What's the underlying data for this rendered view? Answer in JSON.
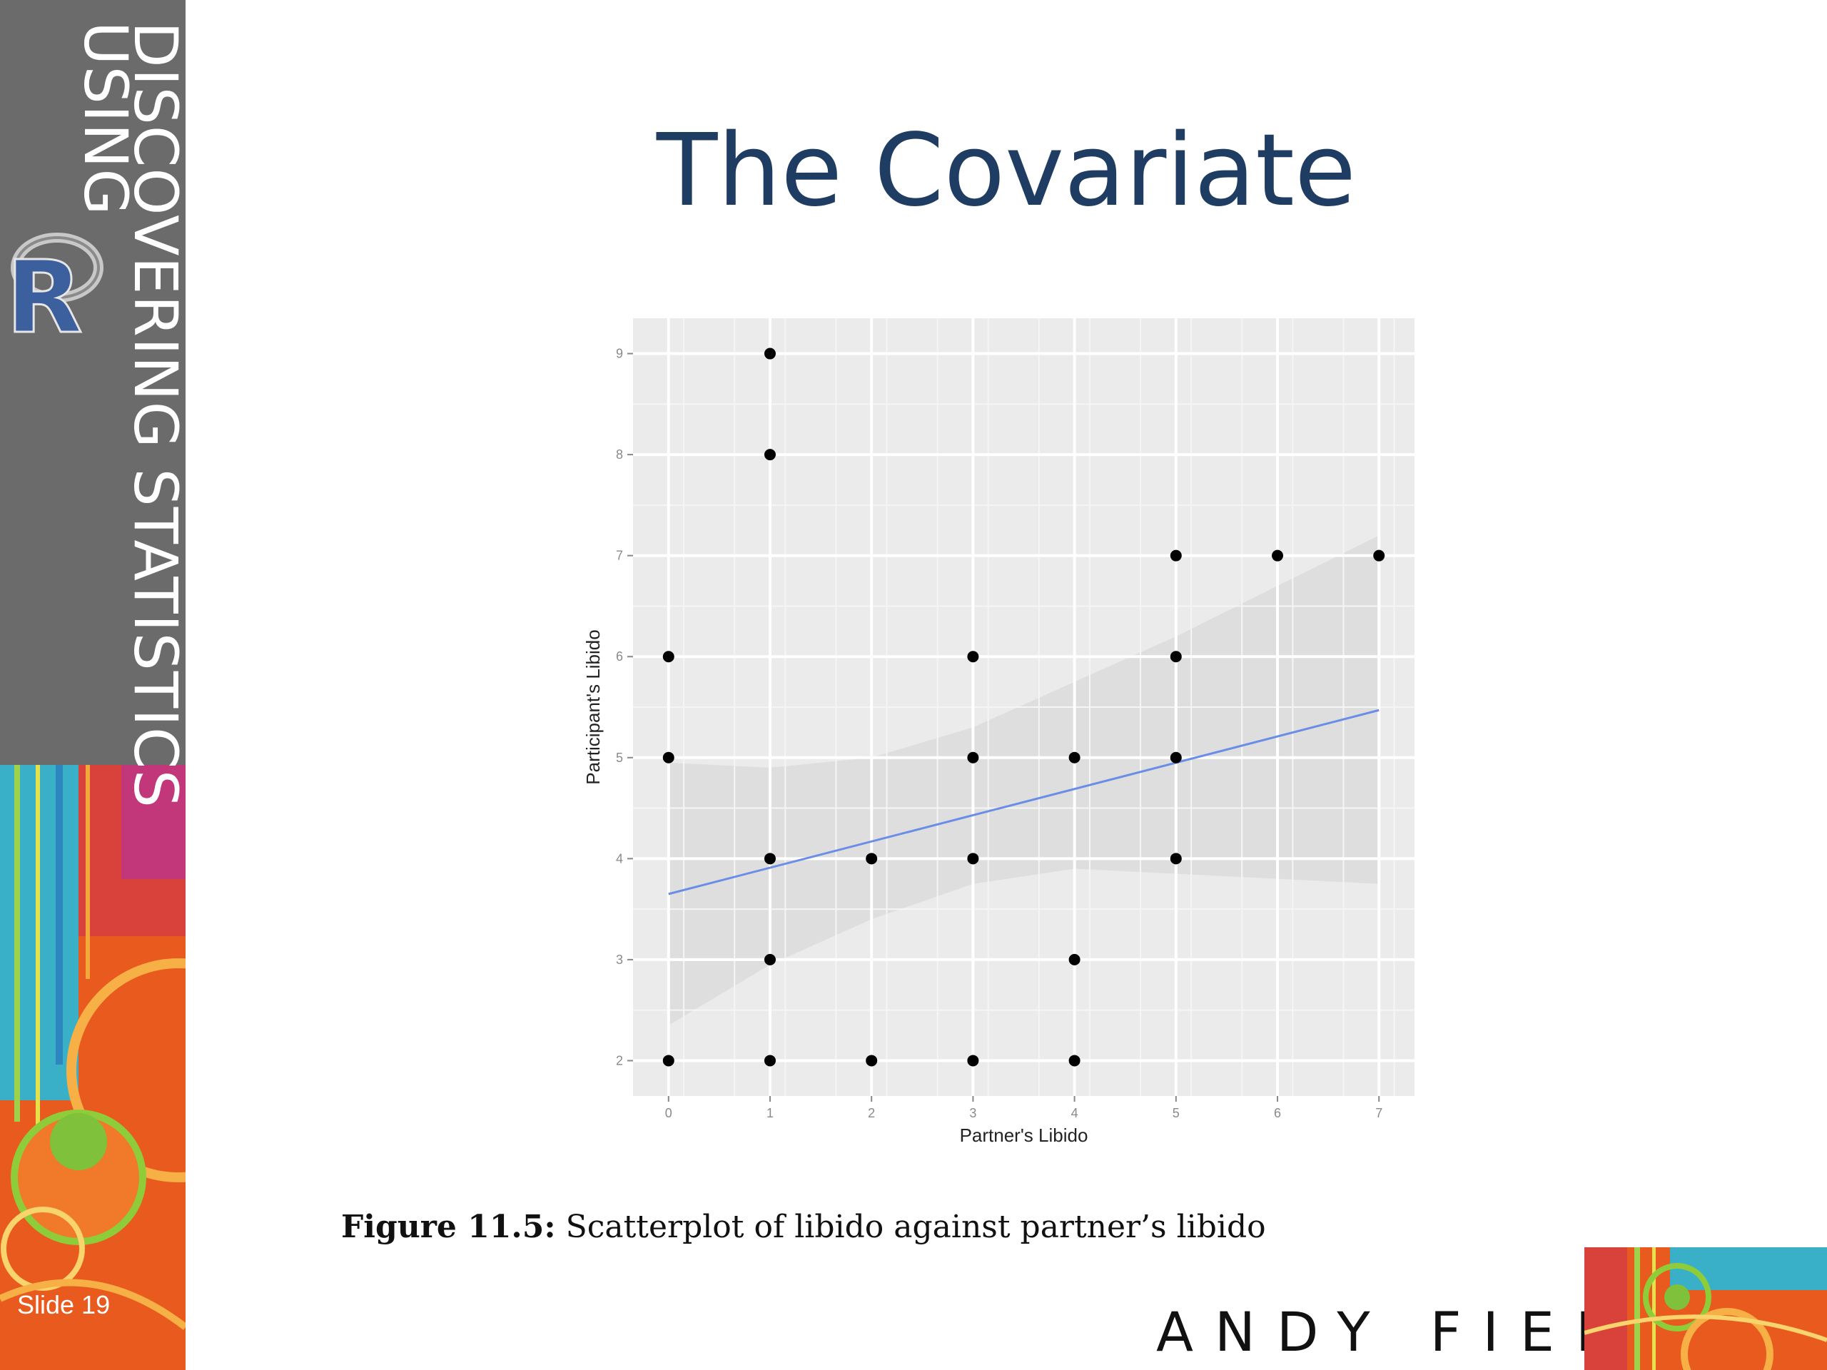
{
  "slide": {
    "series_title_line1": "DISCOVERING STATISTICS",
    "series_title_line2": "USING",
    "logo_letter": "R",
    "title": "The Covariate",
    "slide_number": "Slide 19",
    "caption_label": "Figure 11.5:",
    "caption_text": "Scatterplot of libido against partner’s libido",
    "author": "ANDY FIELD"
  },
  "colors": {
    "title": "#1f3d63",
    "sidebar": "#6b6b6b",
    "panel": "#ebebeb",
    "grid": "#ffffff",
    "point": "#000000",
    "fit_line": "#6a8de8",
    "confidence_band": "#d9d9d9"
  },
  "chart_data": {
    "type": "scatter",
    "xlabel": "Partner's Libido",
    "ylabel": "Participant's Libido",
    "xlim": [
      -0.35,
      7.35
    ],
    "ylim": [
      1.65,
      9.35
    ],
    "x_ticks": [
      0,
      1,
      2,
      3,
      4,
      5,
      6,
      7
    ],
    "y_ticks": [
      2,
      3,
      4,
      5,
      6,
      7,
      8,
      9
    ],
    "grid": true,
    "points": [
      {
        "x": 0,
        "y": 2
      },
      {
        "x": 0,
        "y": 5
      },
      {
        "x": 0,
        "y": 6
      },
      {
        "x": 1,
        "y": 2
      },
      {
        "x": 1,
        "y": 3
      },
      {
        "x": 1,
        "y": 4
      },
      {
        "x": 1,
        "y": 8
      },
      {
        "x": 1,
        "y": 9
      },
      {
        "x": 2,
        "y": 2
      },
      {
        "x": 2,
        "y": 4
      },
      {
        "x": 3,
        "y": 2
      },
      {
        "x": 3,
        "y": 4
      },
      {
        "x": 3,
        "y": 5
      },
      {
        "x": 3,
        "y": 6
      },
      {
        "x": 4,
        "y": 2
      },
      {
        "x": 4,
        "y": 3
      },
      {
        "x": 4,
        "y": 5
      },
      {
        "x": 5,
        "y": 4
      },
      {
        "x": 5,
        "y": 5
      },
      {
        "x": 5,
        "y": 6
      },
      {
        "x": 5,
        "y": 7
      },
      {
        "x": 6,
        "y": 7
      },
      {
        "x": 7,
        "y": 7
      }
    ],
    "fit_line": {
      "x": [
        0,
        7
      ],
      "y": [
        3.65,
        5.47
      ]
    },
    "confidence_band": {
      "x": [
        0,
        1,
        2,
        3,
        4,
        5,
        6,
        7
      ],
      "upper": [
        4.95,
        4.9,
        5.0,
        5.3,
        5.75,
        6.2,
        6.7,
        7.2
      ],
      "lower": [
        2.35,
        2.95,
        3.4,
        3.75,
        3.9,
        3.85,
        3.8,
        3.75
      ]
    }
  }
}
